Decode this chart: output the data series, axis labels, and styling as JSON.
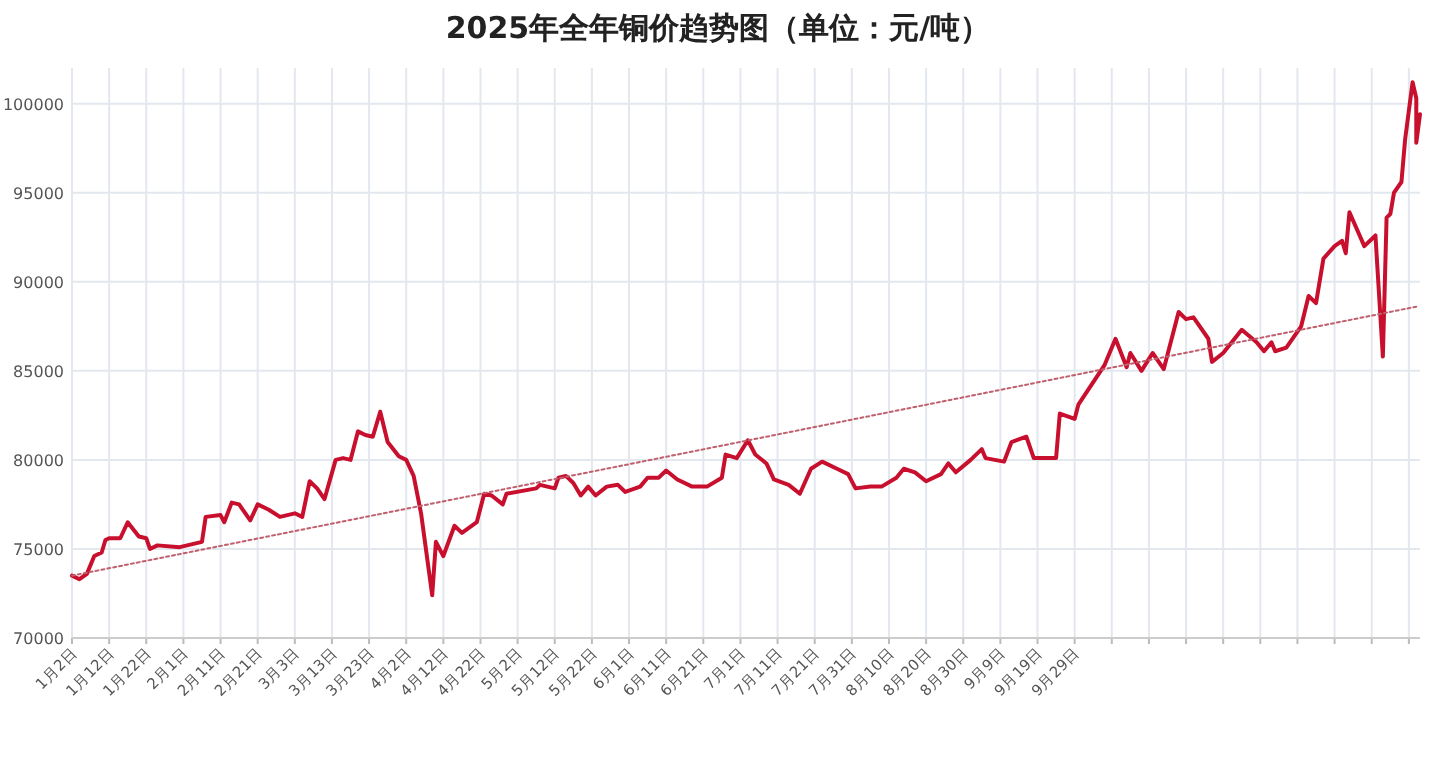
{
  "chart_data": {
    "type": "line",
    "title": "2025年全年铜价趋势图（单位：元/吨）",
    "x": [
      "--01-02",
      "--01-04",
      "--01-06",
      "--01-08",
      "--01-10",
      "--01-11",
      "--01-12",
      "--01-15",
      "--01-17",
      "--01-20",
      "--01-22",
      "--01-23",
      "--01-25",
      "--01-31",
      "--02-06",
      "--02-07",
      "--02-11",
      "--02-12",
      "--02-14",
      "--02-16",
      "--02-19",
      "--02-21",
      "--02-24",
      "--02-27",
      "--03-03",
      "--03-05",
      "--03-07",
      "--03-09",
      "--03-11",
      "--03-14",
      "--03-16",
      "--03-18",
      "--03-20",
      "--03-22",
      "--03-24",
      "--03-26",
      "--03-28",
      "--03-31",
      "--04-02",
      "--04-04",
      "--04-06",
      "--04-09",
      "--04-10",
      "--04-12",
      "--04-15",
      "--04-17",
      "--04-21",
      "--04-23",
      "--04-25",
      "--04-28",
      "--04-29",
      "--05-07",
      "--05-08",
      "--05-12",
      "--05-13",
      "--05-15",
      "--05-17",
      "--05-19",
      "--05-21",
      "--05-23",
      "--05-26",
      "--05-29",
      "--05-31",
      "--06-04",
      "--06-06",
      "--06-09",
      "--06-11",
      "--06-14",
      "--06-18",
      "--06-22",
      "--06-26",
      "--06-27",
      "--06-30",
      "--07-03",
      "--07-05",
      "--07-08",
      "--07-10",
      "--07-14",
      "--07-17",
      "--07-20",
      "--07-23",
      "--07-27",
      "--07-30",
      "--08-01",
      "--08-05",
      "--08-08",
      "--08-12",
      "--08-14",
      "--08-17",
      "--08-20",
      "--08-24",
      "--08-26",
      "--08-28",
      "--09-01",
      "--09-04",
      "--09-05",
      "--09-10",
      "--09-12",
      "--09-16",
      "--09-18",
      "--09-21",
      "--09-24",
      "--09-25",
      "--09-29",
      "--09-30",
      "--10-07",
      "--10-10",
      "--10-13",
      "--10-14",
      "--10-17",
      "--10-20",
      "--10-23",
      "--10-27",
      "--10-29",
      "--10-31",
      "--11-04",
      "--11-05",
      "--11-08",
      "--11-13",
      "--11-17",
      "--11-19",
      "--11-21",
      "--11-22",
      "--11-25",
      "--11-29",
      "--12-01",
      "--12-03",
      "--12-05",
      "--12-08",
      "--12-10",
      "--12-11",
      "--12-12",
      "--12-16",
      "--12-19",
      "--12-21",
      "--12-22",
      "--12-23",
      "--12-24",
      "--12-26",
      "--12-27",
      "--12-29",
      "--12-30",
      "--12-30",
      "--12-31"
    ],
    "series": [
      {
        "color": "#c8102e",
        "line_style": "solid",
        "values": [
          73500,
          73300,
          73600,
          74600,
          74800,
          75500,
          75600,
          75600,
          76500,
          75700,
          75600,
          75000,
          75200,
          75100,
          75400,
          76800,
          76900,
          76500,
          77600,
          77500,
          76600,
          77500,
          77200,
          76800,
          77000,
          76800,
          78800,
          78400,
          77800,
          80000,
          80100,
          80000,
          81600,
          81400,
          81300,
          82700,
          81000,
          80200,
          80000,
          79100,
          77000,
          72400,
          75400,
          74600,
          76300,
          75900,
          76500,
          78100,
          78000,
          77500,
          78100,
          78400,
          78600,
          78400,
          79000,
          79100,
          78700,
          78000,
          78500,
          78000,
          78500,
          78600,
          78200,
          78500,
          79000,
          79000,
          79400,
          78900,
          78500,
          78500,
          79000,
          80300,
          80100,
          81100,
          80300,
          79800,
          78900,
          78600,
          78100,
          79500,
          79900,
          79500,
          79200,
          78400,
          78500,
          78500,
          79000,
          79500,
          79300,
          78800,
          79200,
          79800,
          79300,
          80000,
          80600,
          80100,
          79900,
          81000,
          81300,
          80100,
          80100,
          80100,
          82600,
          82300,
          83100,
          85300,
          86800,
          85200,
          86000,
          85000,
          86000,
          85100,
          88300,
          87900,
          88000,
          86800,
          85500,
          86000,
          87300,
          86600,
          86100,
          86600,
          86100,
          86300,
          87500,
          89200,
          88800,
          91300,
          92000,
          92300,
          91600,
          93900,
          92000,
          92600,
          85800,
          93600,
          93800,
          95000,
          95600,
          98000,
          101200,
          100300,
          97800,
          99400
        ]
      },
      {
        "type": "line",
        "color": "#c0606e",
        "line_style": "dotted",
        "x": [
          "--01-02",
          "--12-30"
        ],
        "values": [
          73500,
          88600
        ]
      }
    ],
    "xlim": [
      "--01-02",
      "--12-31"
    ],
    "ylim": [
      70000,
      102000
    ],
    "xticks": [
      {
        "value": "--01-02",
        "label": "1月2日"
      },
      {
        "value": "--01-12",
        "label": "1月12日"
      },
      {
        "value": "--01-22",
        "label": "1月22日"
      },
      {
        "value": "--02-01",
        "label": "2月1日"
      },
      {
        "value": "--02-11",
        "label": "2月11日"
      },
      {
        "value": "--02-21",
        "label": "2月21日"
      },
      {
        "value": "--03-03",
        "label": "3月3日"
      },
      {
        "value": "--03-13",
        "label": "3月13日"
      },
      {
        "value": "--03-23",
        "label": "3月23日"
      },
      {
        "value": "--04-02",
        "label": "4月2日"
      },
      {
        "value": "--04-12",
        "label": "4月12日"
      },
      {
        "value": "--04-22",
        "label": "4月22日"
      },
      {
        "value": "--05-02",
        "label": "5月2日"
      },
      {
        "value": "--05-12",
        "label": "5月12日"
      },
      {
        "value": "--05-22",
        "label": "5月22日"
      },
      {
        "value": "--06-01",
        "label": "6月1日"
      },
      {
        "value": "--06-11",
        "label": "6月11日"
      },
      {
        "value": "--06-21",
        "label": "6月21日"
      },
      {
        "value": "--07-01",
        "label": "7月1日"
      },
      {
        "value": "--07-11",
        "label": "7月11日"
      },
      {
        "value": "--07-21",
        "label": "7月21日"
      },
      {
        "value": "--07-31",
        "label": "7月31日"
      },
      {
        "value": "--08-10",
        "label": "8月10日"
      },
      {
        "value": "--08-20",
        "label": "8月20日"
      },
      {
        "value": "--08-30",
        "label": "8月30日"
      },
      {
        "value": "--09-09",
        "label": "9月9日"
      },
      {
        "value": "--09-19",
        "label": "9月19日"
      },
      {
        "value": "--09-29",
        "label": "9月29日"
      },
      {
        "value": "--10-09",
        "label": null
      },
      {
        "value": "--10-19",
        "label": null
      },
      {
        "value": "--10-29",
        "label": null
      },
      {
        "value": "--11-08",
        "label": null
      },
      {
        "value": "--11-18",
        "label": null
      },
      {
        "value": "--11-28",
        "label": null
      },
      {
        "value": "--12-08",
        "label": null
      },
      {
        "value": "--12-18",
        "label": null
      },
      {
        "value": "--12-28",
        "label": null
      }
    ],
    "yticks": [
      70000,
      75000,
      80000,
      85000,
      90000,
      95000,
      100000
    ],
    "grid": true
  }
}
